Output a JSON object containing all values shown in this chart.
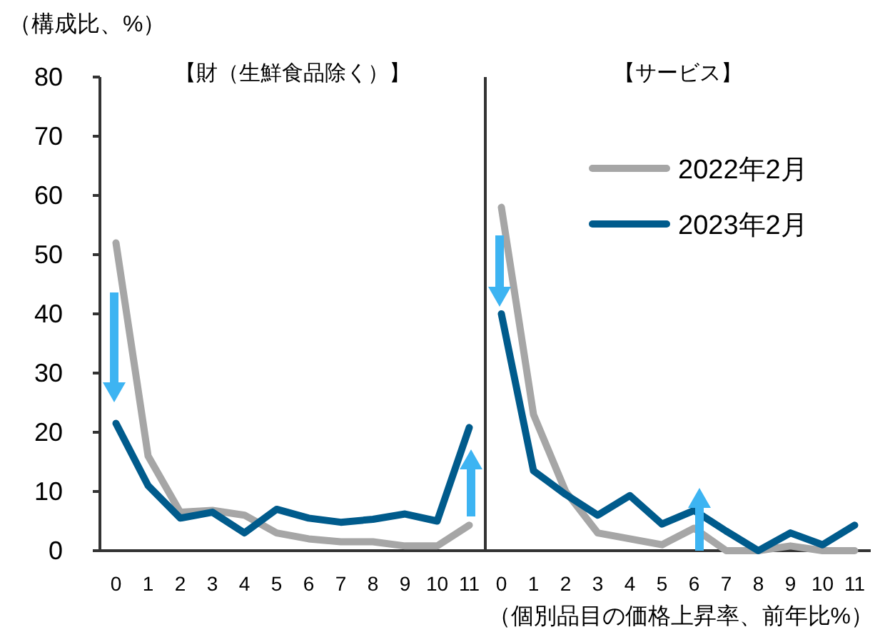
{
  "chart_data": [
    {
      "type": "line",
      "title": "【財（生鮮食品除く）】",
      "ylabel": "（構成比、%）",
      "categories": [
        "0",
        "1",
        "2",
        "3",
        "4",
        "5",
        "6",
        "7",
        "8",
        "9",
        "10",
        "11"
      ],
      "ylim": [
        0,
        80
      ],
      "yticks": [
        0,
        10,
        20,
        30,
        40,
        50,
        60,
        70,
        80
      ],
      "grid": false,
      "legend": false,
      "marker": "none",
      "line_style": "solid",
      "series": [
        {
          "color": "#a6a6a6",
          "values": [
            52,
            16,
            6.5,
            6.8,
            6,
            3,
            2,
            1.5,
            1.5,
            0.8,
            0.8,
            4.3
          ]
        },
        {
          "color": "#005b8c",
          "values": [
            21.5,
            11,
            5.5,
            6.5,
            3,
            7,
            5.5,
            4.8,
            5.3,
            6.2,
            5,
            20.8
          ]
        }
      ]
    },
    {
      "type": "line",
      "title": "【サービス】",
      "xlabel": "（個別品目の価格上昇率、前年比%）",
      "categories": [
        "0",
        "1",
        "2",
        "3",
        "4",
        "5",
        "6",
        "7",
        "8",
        "9",
        "10",
        "11"
      ],
      "ylim": [
        0,
        80
      ],
      "yticks": [
        0,
        10,
        20,
        30,
        40,
        50,
        60,
        70,
        80
      ],
      "tick_labels": "x",
      "grid": false,
      "legend": "top right",
      "marker": "none",
      "line_style": "solid",
      "series": [
        {
          "name": "2022年2月",
          "color": "#a6a6a6",
          "values": [
            58,
            23,
            10,
            3,
            2,
            1,
            3.8,
            0,
            0,
            0.8,
            0,
            0
          ]
        },
        {
          "name": "2023年2月",
          "color": "#005b8c",
          "values": [
            40,
            13.5,
            9.5,
            6,
            9.3,
            4.5,
            6.8,
            3.3,
            0,
            3,
            1,
            4.3
          ]
        }
      ]
    }
  ]
}
